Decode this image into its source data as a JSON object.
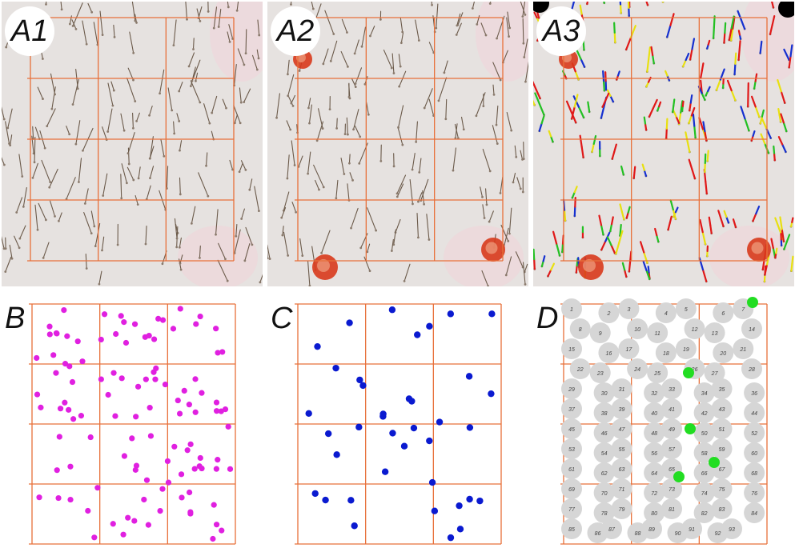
{
  "panels": {
    "a1": {
      "label": "A1"
    },
    "a2": {
      "label": "A2"
    },
    "a3": {
      "label": "A3"
    },
    "b": {
      "label": "B"
    },
    "c": {
      "label": "C"
    },
    "d": {
      "label": "D"
    }
  },
  "colors": {
    "grid": "#e8703a",
    "magenta_dots": "#e020e0",
    "blue_dots": "#0a1ad0",
    "gray_dots": "#d6d6d6",
    "green_dots": "#22dd22",
    "photo_bg": "#e6e2e0",
    "red_mark": "#d83a1c",
    "hair_red": "#e01818",
    "hair_blue": "#1530d0",
    "hair_green": "#22c022",
    "hair_yellow": "#e8e010"
  },
  "panel_d": {
    "numbers": [
      "1",
      "2",
      "3",
      "4",
      "5",
      "6",
      "7",
      "8",
      "9",
      "10",
      "11",
      "12",
      "13",
      "14",
      "15",
      "16",
      "17",
      "18",
      "19",
      "20",
      "21",
      "22",
      "23",
      "24",
      "25",
      "26",
      "27",
      "28",
      "29",
      "30",
      "31",
      "32",
      "33",
      "34",
      "35",
      "36",
      "37",
      "38",
      "39",
      "40",
      "41",
      "42",
      "43",
      "44",
      "45",
      "46",
      "47",
      "48",
      "49",
      "50",
      "51",
      "52",
      "53",
      "54",
      "55",
      "56",
      "57",
      "58",
      "59",
      "60",
      "61",
      "62",
      "63",
      "64",
      "65",
      "66",
      "67",
      "68",
      "69",
      "70",
      "71",
      "72",
      "73",
      "74",
      "75",
      "76",
      "77",
      "78",
      "79",
      "80",
      "81",
      "82",
      "83",
      "84",
      "85",
      "86",
      "87",
      "88",
      "89",
      "90",
      "91",
      "92",
      "93"
    ]
  }
}
